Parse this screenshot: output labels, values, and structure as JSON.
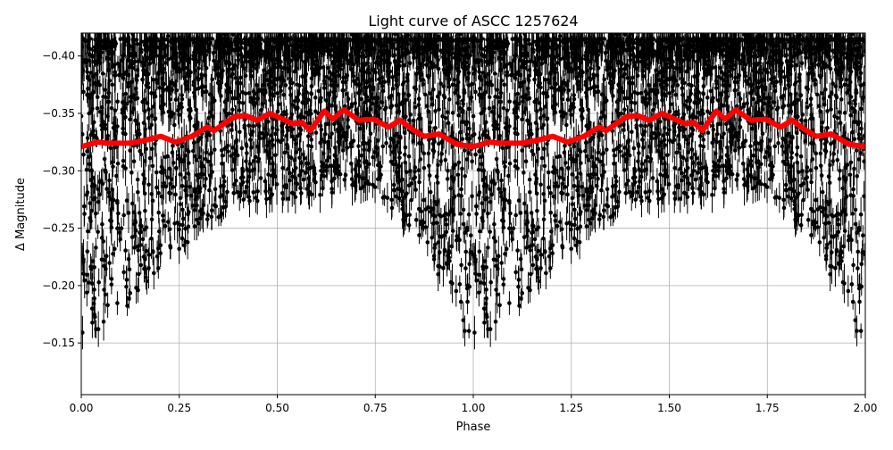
{
  "chart_data": {
    "type": "scatter",
    "title": "Light curve of ASCC 1257624",
    "xlabel": "Phase",
    "ylabel": "Δ Magnitude",
    "xlim": [
      0.0,
      2.0
    ],
    "ylim": [
      -0.105,
      -0.42
    ],
    "y_inverted": true,
    "grid": true,
    "xticks": [
      "0.00",
      "0.25",
      "0.50",
      "0.75",
      "1.00",
      "1.25",
      "1.50",
      "1.75",
      "2.00"
    ],
    "xtick_values": [
      0,
      0.25,
      0.5,
      0.75,
      1.0,
      1.25,
      1.5,
      1.75,
      2.0
    ],
    "yticks": [
      "−0.40",
      "−0.35",
      "−0.30",
      "−0.25",
      "−0.20",
      "−0.15"
    ],
    "ytick_values": [
      -0.4,
      -0.35,
      -0.3,
      -0.25,
      -0.2,
      -0.15
    ],
    "scatter_series": {
      "color": "#000000",
      "marker": "circle-with-errorbars",
      "phase_repeated": true,
      "envelope": {
        "phase": [
          0.0,
          0.1,
          0.2,
          0.3,
          0.4,
          0.5,
          0.6,
          0.7,
          0.8,
          0.9,
          1.0
        ],
        "bright_limit": [
          -0.4,
          -0.4,
          -0.4,
          -0.4,
          -0.4,
          -0.4,
          -0.4,
          -0.4,
          -0.4,
          -0.4,
          -0.4
        ],
        "faint_limit": [
          -0.15,
          -0.18,
          -0.22,
          -0.25,
          -0.27,
          -0.28,
          -0.28,
          -0.29,
          -0.27,
          -0.22,
          -0.15
        ]
      }
    },
    "binned_series": {
      "color": "#ff0000",
      "phase": [
        0.0,
        0.043,
        0.066,
        0.123,
        0.169,
        0.203,
        0.241,
        0.282,
        0.321,
        0.339,
        0.39,
        0.419,
        0.449,
        0.481,
        0.54,
        0.563,
        0.585,
        0.62,
        0.642,
        0.67,
        0.708,
        0.745,
        0.784,
        0.813,
        0.845,
        0.875,
        0.913,
        0.959,
        1.0
      ],
      "magnitude": [
        -0.321,
        -0.325,
        -0.324,
        -0.324,
        -0.327,
        -0.33,
        -0.325,
        -0.33,
        -0.338,
        -0.335,
        -0.347,
        -0.348,
        -0.344,
        -0.35,
        -0.341,
        -0.342,
        -0.335,
        -0.352,
        -0.345,
        -0.353,
        -0.344,
        -0.345,
        -0.338,
        -0.344,
        -0.336,
        -0.33,
        -0.332,
        -0.323,
        -0.321
      ]
    }
  }
}
